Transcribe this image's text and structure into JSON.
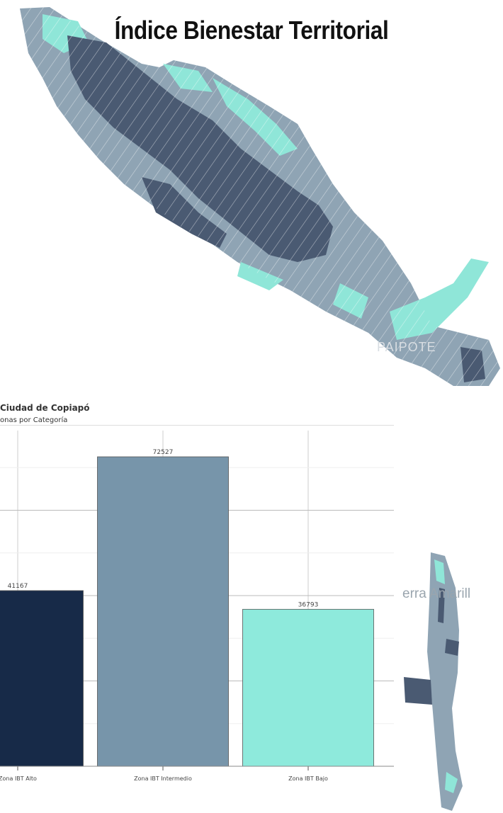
{
  "map": {
    "title": "Índice Bienestar Territorial",
    "locality_label": "PAIPOTE",
    "inset_label": "erra Amarill",
    "colors": {
      "alto": "#4a5a72",
      "intermedio": "#8fa4b4",
      "bajo": "#8fe6d8",
      "street": "#e8eef2"
    }
  },
  "chart": {
    "title": "Ciudad de Copiapó",
    "subtitle": "onas por Categoría"
  },
  "chart_data": {
    "type": "bar",
    "categories": [
      "Zona IBT Alto",
      "Zona IBT Intermedio",
      "Zona IBT Bajo"
    ],
    "values": [
      41167,
      72527,
      36793
    ],
    "value_labels": [
      "41167",
      "72527",
      "36793"
    ],
    "colors": [
      "#172a48",
      "#7795aa",
      "#8eeadc"
    ],
    "ylim": [
      0,
      80000
    ],
    "grid": true
  }
}
